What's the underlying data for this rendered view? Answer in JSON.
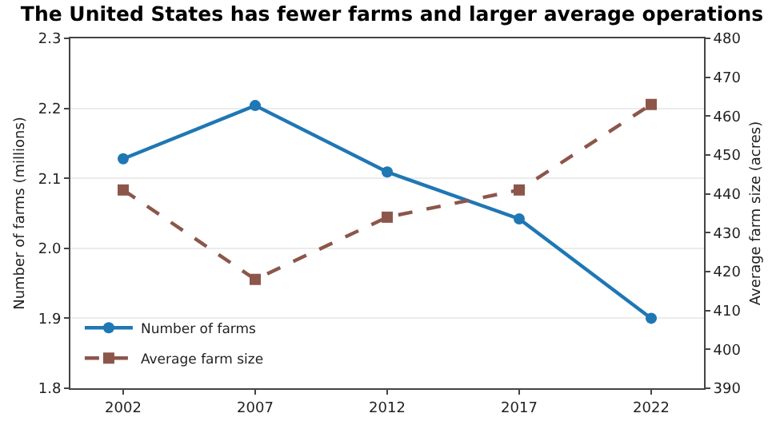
{
  "chart_data": {
    "type": "line",
    "title": "The United States has fewer farms and larger average operations",
    "ylabel": "Number of farms (millions)",
    "y2label": "Average farm size (acres)",
    "categories": [
      "2002",
      "2007",
      "2012",
      "2017",
      "2022"
    ],
    "series": [
      {
        "name": "Number of farms",
        "color": "#1f77b4",
        "values": [
          2.128,
          2.204,
          2.109,
          2.042,
          1.9
        ],
        "marker": "circle",
        "line_style": "solid"
      },
      {
        "name": "Average farm size",
        "color": "#8c564b",
        "values": [
          441,
          418,
          434,
          441,
          463
        ],
        "axis": "y2",
        "marker": "square",
        "line_style": "dashed"
      }
    ],
    "ylim": [
      1.8,
      2.3
    ],
    "yticks": [
      {
        "value": 1.8,
        "label": "1.8"
      },
      {
        "value": 1.9,
        "label": "1.9"
      },
      {
        "value": 2.0,
        "label": "2.0"
      },
      {
        "value": 2.1,
        "label": "2.1"
      },
      {
        "value": 2.2,
        "label": "2.2"
      },
      {
        "value": 2.3,
        "label": "2.3"
      }
    ],
    "y2lim": [
      390,
      480
    ],
    "y2ticks": [
      390,
      400,
      410,
      420,
      430,
      440,
      450,
      460,
      470,
      480
    ],
    "grid": "y",
    "legend": "bottom left"
  }
}
